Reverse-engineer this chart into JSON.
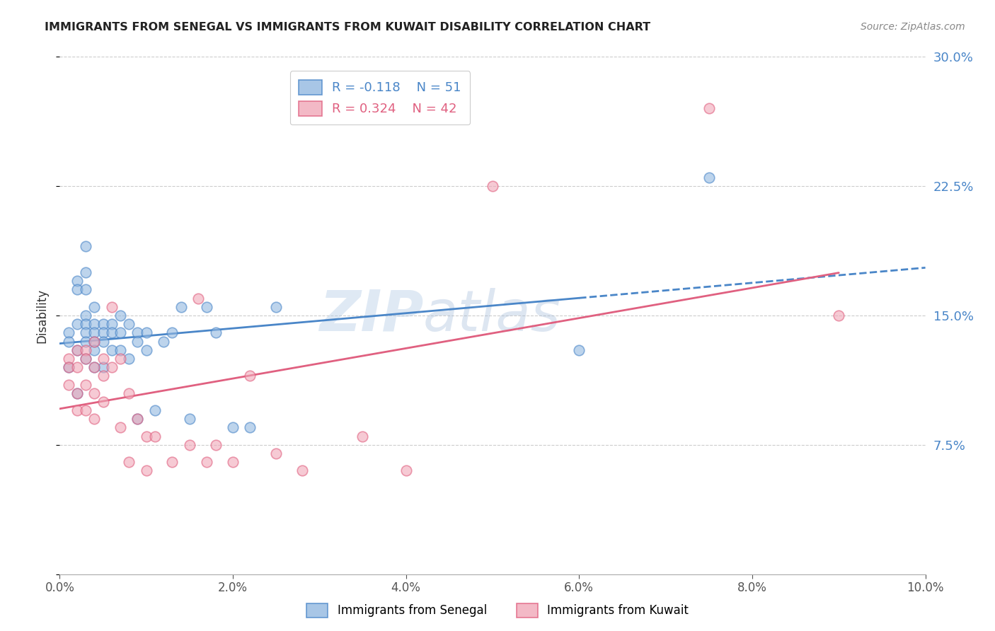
{
  "title": "IMMIGRANTS FROM SENEGAL VS IMMIGRANTS FROM KUWAIT DISABILITY CORRELATION CHART",
  "source": "Source: ZipAtlas.com",
  "ylabel_label": "Disability",
  "legend_label1": "Immigrants from Senegal",
  "legend_label2": "Immigrants from Kuwait",
  "R1": -0.118,
  "N1": 51,
  "R2": 0.324,
  "N2": 42,
  "xlim": [
    0.0,
    0.1
  ],
  "ylim": [
    0.0,
    0.3
  ],
  "xticks": [
    0.0,
    0.02,
    0.04,
    0.06,
    0.08,
    0.1
  ],
  "yticks": [
    0.075,
    0.15,
    0.225,
    0.3
  ],
  "color_senegal": "#92b8e0",
  "color_kuwait": "#f0a8b8",
  "trendline_senegal": "#4a86c8",
  "trendline_kuwait": "#e06080",
  "watermark_zip": "ZIP",
  "watermark_atlas": "atlas",
  "senegal_x": [
    0.001,
    0.001,
    0.001,
    0.002,
    0.002,
    0.002,
    0.002,
    0.002,
    0.003,
    0.003,
    0.003,
    0.003,
    0.003,
    0.003,
    0.003,
    0.003,
    0.004,
    0.004,
    0.004,
    0.004,
    0.004,
    0.004,
    0.005,
    0.005,
    0.005,
    0.005,
    0.006,
    0.006,
    0.006,
    0.007,
    0.007,
    0.007,
    0.008,
    0.008,
    0.009,
    0.009,
    0.009,
    0.01,
    0.01,
    0.011,
    0.012,
    0.013,
    0.014,
    0.015,
    0.017,
    0.018,
    0.02,
    0.022,
    0.025,
    0.06,
    0.075
  ],
  "senegal_y": [
    0.14,
    0.135,
    0.12,
    0.17,
    0.165,
    0.145,
    0.13,
    0.105,
    0.19,
    0.175,
    0.165,
    0.15,
    0.145,
    0.14,
    0.135,
    0.125,
    0.155,
    0.145,
    0.14,
    0.135,
    0.13,
    0.12,
    0.145,
    0.14,
    0.135,
    0.12,
    0.145,
    0.14,
    0.13,
    0.15,
    0.14,
    0.13,
    0.145,
    0.125,
    0.14,
    0.135,
    0.09,
    0.14,
    0.13,
    0.095,
    0.135,
    0.14,
    0.155,
    0.09,
    0.155,
    0.14,
    0.085,
    0.085,
    0.155,
    0.13,
    0.23
  ],
  "kuwait_x": [
    0.001,
    0.001,
    0.001,
    0.002,
    0.002,
    0.002,
    0.002,
    0.003,
    0.003,
    0.003,
    0.003,
    0.004,
    0.004,
    0.004,
    0.004,
    0.005,
    0.005,
    0.005,
    0.006,
    0.006,
    0.007,
    0.007,
    0.008,
    0.008,
    0.009,
    0.01,
    0.01,
    0.011,
    0.013,
    0.015,
    0.016,
    0.017,
    0.018,
    0.02,
    0.022,
    0.025,
    0.028,
    0.035,
    0.04,
    0.05,
    0.075,
    0.09
  ],
  "kuwait_y": [
    0.125,
    0.12,
    0.11,
    0.13,
    0.12,
    0.105,
    0.095,
    0.13,
    0.125,
    0.11,
    0.095,
    0.135,
    0.12,
    0.105,
    0.09,
    0.125,
    0.115,
    0.1,
    0.155,
    0.12,
    0.125,
    0.085,
    0.105,
    0.065,
    0.09,
    0.08,
    0.06,
    0.08,
    0.065,
    0.075,
    0.16,
    0.065,
    0.075,
    0.065,
    0.115,
    0.07,
    0.06,
    0.08,
    0.06,
    0.225,
    0.27,
    0.15
  ],
  "senegal_trendline_solid_end": 0.06,
  "senegal_trendline_dash_end": 0.1,
  "kuwait_trendline_solid_end": 0.09
}
